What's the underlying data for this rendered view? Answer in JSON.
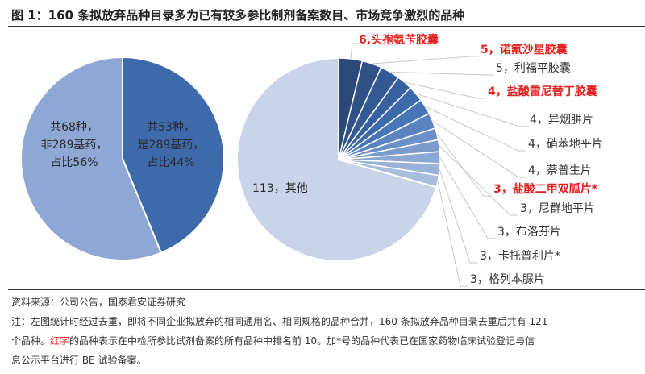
{
  "title": "图 1：160 条拟放弃品种目录多为已有较多参比制剂备案数目、市场竞争激烈的品种",
  "chart_data": [
    {
      "type": "pie",
      "start": "top",
      "direction": "clockwise",
      "slices": [
        {
          "value": 53,
          "label": [
            "共53种，",
            "是289基药，",
            "占比44%"
          ],
          "color": "#3e6aab"
        },
        {
          "value": 68,
          "label": [
            "共68种，",
            "非289基药，",
            "占比56%"
          ],
          "color": "#8ea7d5"
        }
      ]
    },
    {
      "type": "pie",
      "start": "top",
      "direction": "clockwise",
      "slices": [
        {
          "value": 6,
          "label": "6,头孢氨苄胶囊",
          "highlight": true,
          "color": "#2c4a78"
        },
        {
          "value": 5,
          "label": "5，诺氟沙星胶囊",
          "highlight": true,
          "color": "#2f5185"
        },
        {
          "value": 5,
          "label": "5，利福平胶囊",
          "highlight": false,
          "color": "#335a92"
        },
        {
          "value": 4,
          "label": "4，盐酸雷尼替丁胶囊",
          "highlight": true,
          "color": "#37629f"
        },
        {
          "value": 4,
          "label": "4，异烟肼片",
          "highlight": false,
          "color": "#3c6aab"
        },
        {
          "value": 4,
          "label": "4，硝苯地平片",
          "highlight": false,
          "color": "#4775b8"
        },
        {
          "value": 4,
          "label": "4，萘普生片",
          "highlight": false,
          "color": "#5a83c0"
        },
        {
          "value": 3,
          "label": "3，盐酸二甲双胍片*",
          "highlight": true,
          "color": "#6b90c8"
        },
        {
          "value": 3,
          "label": "3，尼群地平片",
          "highlight": false,
          "color": "#7c9bcd"
        },
        {
          "value": 3,
          "label": "3，布洛芬片",
          "highlight": false,
          "color": "#8ba7d3"
        },
        {
          "value": 3,
          "label": "3，卡托普利片*",
          "highlight": false,
          "color": "#9ab2d8"
        },
        {
          "value": 3,
          "label": "3，格列本脲片",
          "highlight": false,
          "color": "#a9bddd"
        },
        {
          "value": 113,
          "label": "113，其他",
          "highlight": false,
          "color": "#cad4e9"
        }
      ]
    }
  ],
  "colors": {
    "highlight": "#e0201e",
    "text": "#333333"
  },
  "footer": {
    "source": "资料来源：公司公告，国泰君安证券研究",
    "note1": "注：左图统计时经过去重，即将不同企业拟放弃的相同通用名、相同规格的品种合并，160 条拟放弃品种目录去重后共有 121",
    "note2_a": "个品种。",
    "note2_red": "红字",
    "note2_b": "的品种表示在中检所参比试剂备案的所有品种中排名前 10。加*号的品种代表已在国家药物临床试验登记与信",
    "note3": "息公示平台进行 BE 试验备案。"
  }
}
